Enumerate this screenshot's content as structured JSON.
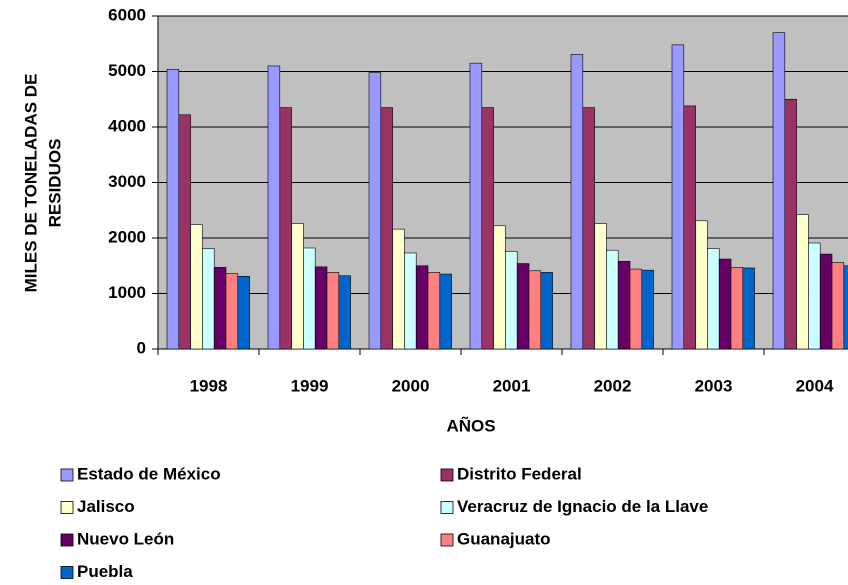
{
  "chart_data": {
    "type": "bar",
    "y_label": [
      "MILES DE TONELADAS DE",
      "RESIDUOS"
    ],
    "x_label": "AÑOS",
    "categories": [
      "1998",
      "1999",
      "2000",
      "2001",
      "2002",
      "2003",
      "2004"
    ],
    "series": [
      {
        "name": "Estado de México",
        "color": "#9999ff",
        "values": [
          5040,
          5100,
          4980,
          5150,
          5310,
          5480,
          5700
        ]
      },
      {
        "name": "Distrito Federal",
        "color": "#993366",
        "values": [
          4220,
          4350,
          4350,
          4350,
          4350,
          4380,
          4500
        ]
      },
      {
        "name": "Jalisco",
        "color": "#ffffcc",
        "values": [
          2240,
          2260,
          2160,
          2220,
          2260,
          2310,
          2420
        ]
      },
      {
        "name": "Veracruz de Ignacio de la Llave",
        "color": "#ccffff",
        "values": [
          1810,
          1820,
          1730,
          1760,
          1780,
          1810,
          1910
        ]
      },
      {
        "name": "Nuevo León",
        "color": "#660066",
        "values": [
          1470,
          1480,
          1500,
          1540,
          1580,
          1620,
          1710
        ]
      },
      {
        "name": "Guanajuato",
        "color": "#ff8080",
        "values": [
          1360,
          1380,
          1380,
          1410,
          1440,
          1470,
          1560
        ]
      },
      {
        "name": "Puebla",
        "color": "#0066cc",
        "values": [
          1310,
          1320,
          1350,
          1380,
          1420,
          1460,
          1500
        ]
      }
    ],
    "ylim": [
      0,
      6000
    ],
    "yticks": [
      0,
      1000,
      2000,
      3000,
      4000,
      5000,
      6000
    ],
    "grid": true,
    "legend": "bottom"
  }
}
